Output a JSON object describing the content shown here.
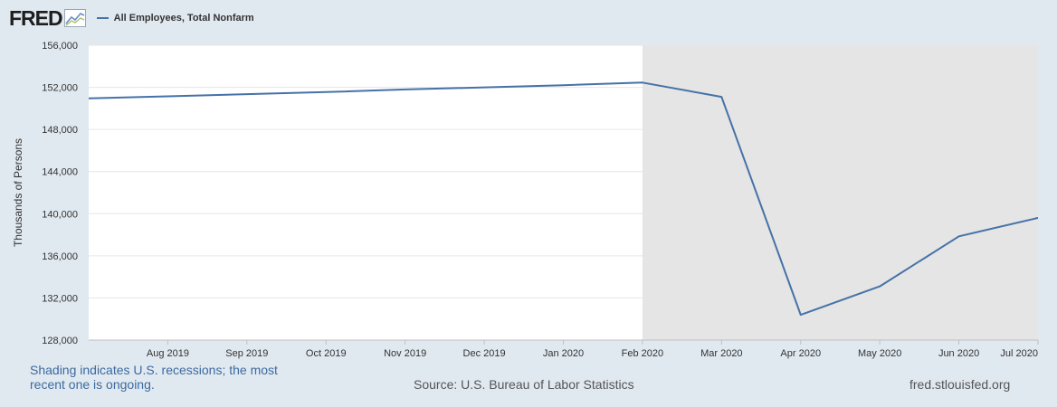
{
  "header": {
    "logo_text": "FRED",
    "logo_icon": "fred-chart-icon"
  },
  "footer": {
    "note": "Shading indicates U.S. recessions; the most recent one is ongoing.",
    "source": "Source: U.S. Bureau of Labor Statistics",
    "site": "fred.stlouisfed.org"
  },
  "colors": {
    "series": "#4572a7",
    "recession": "#e5e5e5",
    "background": "#e1e9f0",
    "plot": "#ffffff",
    "grid": "#e6e6e6"
  },
  "chart_data": {
    "type": "line",
    "ylabel": "Thousands of Persons",
    "ylim": [
      128000,
      156000
    ],
    "yticks": [
      128000,
      132000,
      136000,
      140000,
      144000,
      148000,
      152000,
      156000
    ],
    "x_tick_labels": [
      "Aug 2019",
      "Sep 2019",
      "Oct 2019",
      "Nov 2019",
      "Dec 2019",
      "Jan 2020",
      "Feb 2020",
      "Mar 2020",
      "Apr 2020",
      "May 2020",
      "Jun 2020",
      "Jul 2020"
    ],
    "x": [
      "2019-07",
      "2019-08",
      "2019-09",
      "2019-10",
      "2019-11",
      "2019-12",
      "2020-01",
      "2020-02",
      "2020-03",
      "2020-04",
      "2020-05",
      "2020-06",
      "2020-07"
    ],
    "recession_start": "2020-02",
    "legend_position": "top-left",
    "grid": true,
    "series": [
      {
        "name": "All Employees, Total Nonfarm",
        "values": [
          150950,
          151150,
          151350,
          151550,
          151800,
          152000,
          152200,
          152450,
          151100,
          130400,
          133100,
          137850,
          139600
        ]
      }
    ]
  }
}
